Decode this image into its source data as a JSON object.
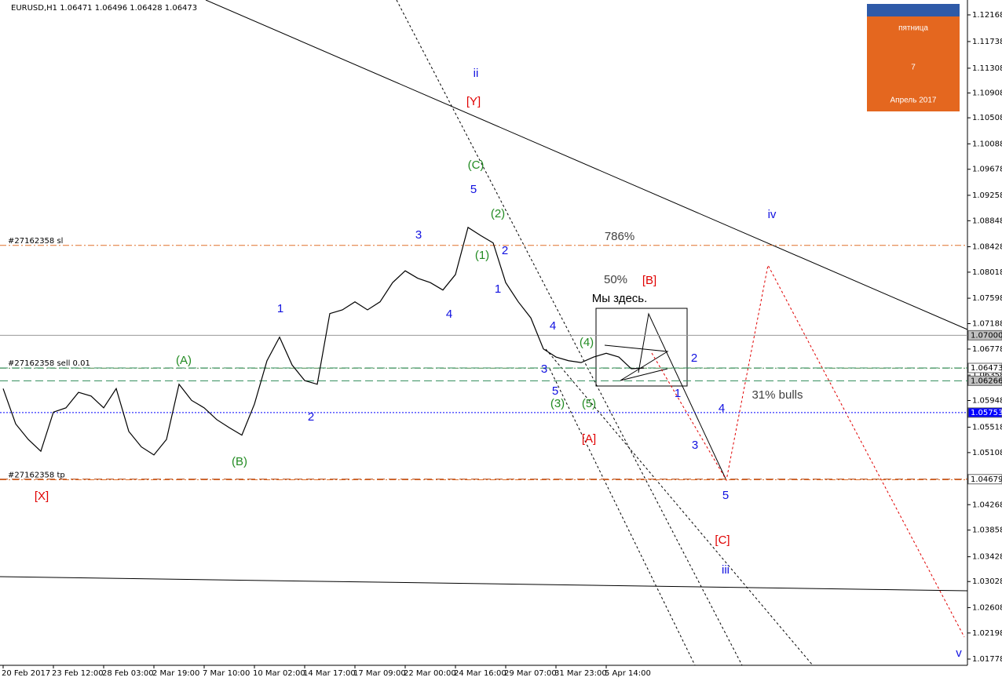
{
  "chart_data": {
    "type": "line",
    "title": "EURUSD,H1 1.06471 1.06496 1.06428 1.06473",
    "color": "#000000",
    "categories": [
      "20 Feb 2017",
      null,
      null,
      null,
      "23 Feb 12:00",
      null,
      null,
      null,
      "28 Feb 03:00",
      null,
      null,
      null,
      "2 Mar 19:00",
      null,
      null,
      null,
      "7 Mar 10:00",
      null,
      null,
      null,
      "10 Mar 02:00",
      null,
      null,
      null,
      "14 Mar 17:00",
      null,
      null,
      null,
      "17 Mar 09:00",
      null,
      null,
      null,
      "22 Mar 00:00",
      null,
      null,
      null,
      "24 Mar 16:00",
      null,
      null,
      null,
      "29 Mar 07:00",
      null,
      null,
      null,
      "31 Mar 23:00",
      null,
      null,
      null,
      "5 Apr 14:00",
      null,
      null,
      null
    ],
    "values": [
      1.0614,
      1.0557,
      1.0532,
      1.0513,
      1.0576,
      1.0583,
      1.0608,
      1.0602,
      1.0583,
      1.0614,
      1.0545,
      1.052,
      1.0507,
      1.0532,
      1.0621,
      1.0595,
      1.0583,
      1.0564,
      1.0551,
      1.0539,
      1.0589,
      1.0659,
      1.0697,
      1.0652,
      1.0627,
      1.0621,
      1.0735,
      1.0741,
      1.0754,
      1.0741,
      1.0754,
      1.0785,
      1.0804,
      1.0792,
      1.0785,
      1.0773,
      1.0798,
      1.0874,
      1.0861,
      1.0849,
      1.0785,
      1.0754,
      1.0728,
      1.0678,
      1.0665,
      1.0659,
      1.0656,
      1.0665,
      1.0671,
      1.0665,
      1.0646,
      1.06473
    ],
    "ylim": [
      1.01677,
      1.12408
    ],
    "yticks": [
      1.12168,
      1.11738,
      1.11308,
      1.10908,
      1.10508,
      1.10088,
      1.09678,
      1.09258,
      1.08848,
      1.08428,
      1.08018,
      1.07598,
      1.07188,
      1.06778,
      1.06358,
      1.05948,
      1.05518,
      1.05108,
      1.04698,
      1.04268,
      1.03858,
      1.03428,
      1.03028,
      1.02608,
      1.02198,
      1.01778
    ],
    "price_tags": [
      {
        "value": 1.07,
        "label": "1.07000",
        "color": "#999999",
        "fill": "#c0c0c0",
        "text_color": "#000000"
      },
      {
        "value": 1.06473,
        "color": "#2e8b57",
        "fill": "#ffffff",
        "text_color": "#000000"
      },
      {
        "value": 1.06266,
        "color": "#2e8b57",
        "fill": "#c0c0c0",
        "text_color": "#000000"
      },
      {
        "value": 1.05753,
        "color": "#0000ff",
        "fill": "#0000ff",
        "text_color": "#ffffff"
      },
      {
        "value": 1.04679,
        "color": "#b03a00",
        "fill": "#ffffff",
        "text_color": "#000000"
      }
    ],
    "order_lines": [
      {
        "text": "#27162358 sl",
        "value": 1.0845,
        "color": "#e0702a"
      },
      {
        "text": "#27162358 sell 0.01",
        "value": 1.0647,
        "color": "#4a8a4a"
      },
      {
        "text": "#27162358 tp",
        "value": 1.0467,
        "color": "#e0702a"
      }
    ],
    "annotations": [
      {
        "text": "ii",
        "color": "#1010e0"
      },
      {
        "text": "[Y]",
        "color": "#e00000"
      },
      {
        "text": "(C)",
        "color": "#228b22"
      },
      {
        "text": "5",
        "color": "#1010e0"
      },
      {
        "text": "(2)",
        "color": "#228b22"
      },
      {
        "text": "3",
        "color": "#1010e0"
      },
      {
        "text": "(1)",
        "color": "#228b22"
      },
      {
        "text": "2",
        "color": "#1010e0"
      },
      {
        "text": "1",
        "color": "#1010e0"
      },
      {
        "text": "4",
        "color": "#1010e0"
      },
      {
        "text": "786%",
        "color": "#404040"
      },
      {
        "text": "50%",
        "color": "#404040"
      },
      {
        "text": "[B]",
        "color": "#e00000"
      },
      {
        "text": "Мы здесь.",
        "color": "#000000"
      },
      {
        "text": "iv",
        "color": "#1010e0"
      },
      {
        "text": "4",
        "color": "#1010e0"
      },
      {
        "text": "(4)",
        "color": "#228b22"
      },
      {
        "text": "3",
        "color": "#1010e0"
      },
      {
        "text": "5",
        "color": "#1010e0"
      },
      {
        "text": "(3)",
        "color": "#228b22"
      },
      {
        "text": "(5)",
        "color": "#228b22"
      },
      {
        "text": "[A]",
        "color": "#e00000"
      },
      {
        "text": "2",
        "color": "#1010e0"
      },
      {
        "text": "1",
        "color": "#1010e0"
      },
      {
        "text": "31% bulls",
        "color": "#404040"
      },
      {
        "text": "4",
        "color": "#1010e0"
      },
      {
        "text": "3",
        "color": "#1010e0"
      },
      {
        "text": "5",
        "color": "#1010e0"
      },
      {
        "text": "[C]",
        "color": "#e00000"
      },
      {
        "text": "iii",
        "color": "#1010e0"
      },
      {
        "text": "v",
        "color": "#1010e0"
      },
      {
        "text": "1",
        "color": "#1010e0"
      },
      {
        "text": "(A)",
        "color": "#228b22"
      },
      {
        "text": "(B)",
        "color": "#228b22"
      },
      {
        "text": "2",
        "color": "#1010e0"
      },
      {
        "text": "[X]",
        "color": "#e00000"
      }
    ],
    "calendar": {
      "weekday": "пятница",
      "day": "7",
      "month_year": "Апрель 2017"
    }
  }
}
